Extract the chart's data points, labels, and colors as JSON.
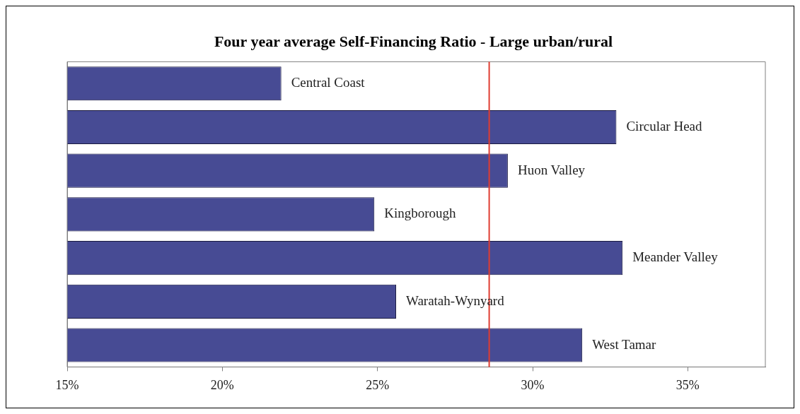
{
  "chart_data": {
    "type": "bar",
    "orientation": "horizontal",
    "title": "Four year average Self-Financing Ratio - Large urban/rural",
    "categories": [
      "Central Coast",
      "Circular Head",
      "Huon Valley",
      "Kingborough",
      "Meander Valley",
      "Waratah-Wynyard",
      "West Tamar"
    ],
    "values": [
      21.9,
      32.7,
      29.2,
      24.9,
      32.9,
      25.6,
      31.6
    ],
    "color": "#474b94",
    "xlim": [
      15,
      37.5
    ],
    "xticks": [
      {
        "value": 15,
        "label": "15%"
      },
      {
        "value": 20,
        "label": "20%"
      },
      {
        "value": 25,
        "label": "25%"
      },
      {
        "value": 30,
        "label": "30%"
      },
      {
        "value": 35,
        "label": "35%"
      }
    ],
    "ref_lines": [
      {
        "axis": "x",
        "value": 28.6,
        "color": "#e03c31"
      }
    ],
    "grid": false,
    "legend": false
  }
}
